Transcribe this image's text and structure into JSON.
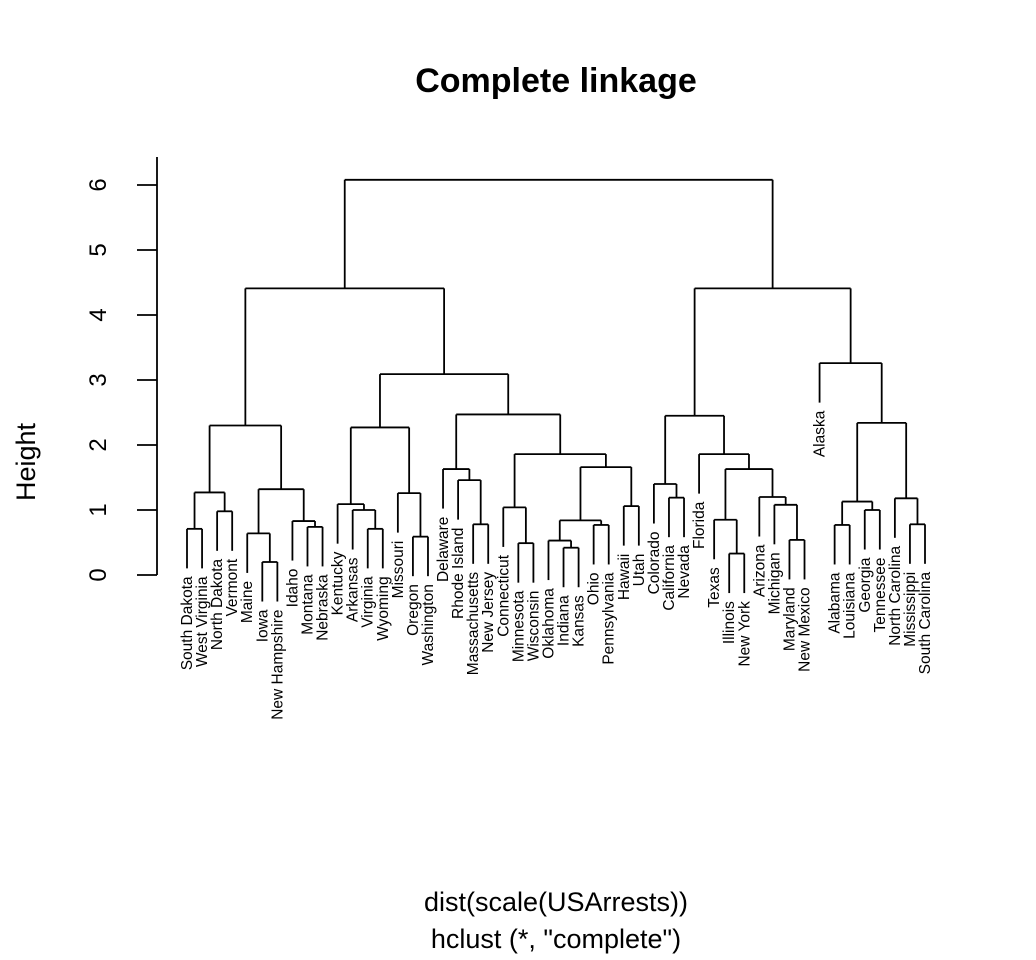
{
  "chart_data": {
    "type": "dendrogram",
    "title": "Complete linkage",
    "ylabel": "Height",
    "xlabel": "dist(scale(USArrests))",
    "sub": "hclust (*, \"complete\")",
    "ylim": [
      0,
      6
    ],
    "yticks": [
      0,
      1,
      2,
      3,
      4,
      5,
      6
    ],
    "grid": false,
    "labels": [
      "South Dakota",
      "West Virginia",
      "North Dakota",
      "Vermont",
      "Maine",
      "Iowa",
      "New Hampshire",
      "Idaho",
      "Montana",
      "Nebraska",
      "Kentucky",
      "Arkansas",
      "Virginia",
      "Wyoming",
      "Missouri",
      "Oregon",
      "Washington",
      "Delaware",
      "Rhode Island",
      "Massachusetts",
      "New Jersey",
      "Connecticut",
      "Minnesota",
      "Wisconsin",
      "Oklahoma",
      "Indiana",
      "Kansas",
      "Ohio",
      "Pennsylvania",
      "Hawaii",
      "Utah",
      "Colorado",
      "California",
      "Nevada",
      "Florida",
      "Texas",
      "Illinois",
      "New York",
      "Arizona",
      "Michigan",
      "Maryland",
      "New Mexico",
      "Alaska",
      "Alabama",
      "Louisiana",
      "Georgia",
      "Tennessee",
      "North Carolina",
      "Mississippi",
      "South Carolina"
    ],
    "tree": {
      "h": 6.08,
      "c": [
        {
          "h": 4.41,
          "c": [
            {
              "h": 2.3,
              "c": [
                {
                  "h": 1.27,
                  "c": [
                    {
                      "h": 0.71,
                      "c": [
                        0,
                        1
                      ]
                    },
                    {
                      "h": 0.98,
                      "c": [
                        2,
                        3
                      ]
                    }
                  ]
                },
                {
                  "h": 1.32,
                  "c": [
                    {
                      "h": 0.64,
                      "c": [
                        4,
                        {
                          "h": 0.2,
                          "c": [
                            5,
                            6
                          ]
                        }
                      ]
                    },
                    {
                      "h": 0.83,
                      "c": [
                        7,
                        {
                          "h": 0.74,
                          "c": [
                            8,
                            9
                          ]
                        }
                      ]
                    }
                  ]
                }
              ]
            },
            {
              "h": 3.09,
              "c": [
                {
                  "h": 2.27,
                  "c": [
                    {
                      "h": 1.09,
                      "c": [
                        10,
                        {
                          "h": 1.0,
                          "c": [
                            11,
                            {
                              "h": 0.71,
                              "c": [
                                12,
                                13
                              ]
                            }
                          ]
                        }
                      ]
                    },
                    {
                      "h": 1.26,
                      "c": [
                        14,
                        {
                          "h": 0.59,
                          "c": [
                            15,
                            16
                          ]
                        }
                      ]
                    }
                  ]
                },
                {
                  "h": 2.47,
                  "c": [
                    {
                      "h": 1.63,
                      "c": [
                        17,
                        {
                          "h": 1.46,
                          "c": [
                            18,
                            {
                              "h": 0.78,
                              "c": [
                                19,
                                20
                              ]
                            }
                          ]
                        }
                      ]
                    },
                    {
                      "h": 1.86,
                      "c": [
                        {
                          "h": 1.04,
                          "c": [
                            21,
                            {
                              "h": 0.49,
                              "c": [
                                22,
                                23
                              ]
                            }
                          ]
                        },
                        {
                          "h": 1.66,
                          "c": [
                            {
                              "h": 0.84,
                              "c": [
                                {
                                  "h": 0.53,
                                  "c": [
                                    24,
                                    {
                                      "h": 0.42,
                                      "c": [
                                        25,
                                        26
                                      ]
                                    }
                                  ]
                                },
                                {
                                  "h": 0.77,
                                  "c": [
                                    27,
                                    28
                                  ]
                                }
                              ]
                            },
                            {
                              "h": 1.06,
                              "c": [
                                29,
                                30
                              ]
                            }
                          ]
                        }
                      ]
                    }
                  ]
                }
              ]
            }
          ]
        },
        {
          "h": 4.41,
          "c": [
            {
              "h": 2.45,
              "c": [
                {
                  "h": 1.4,
                  "c": [
                    31,
                    {
                      "h": 1.19,
                      "c": [
                        32,
                        33
                      ]
                    }
                  ]
                },
                {
                  "h": 1.86,
                  "c": [
                    34,
                    {
                      "h": 1.63,
                      "c": [
                        {
                          "h": 0.85,
                          "c": [
                            35,
                            {
                              "h": 0.33,
                              "c": [
                                36,
                                37
                              ]
                            }
                          ]
                        },
                        {
                          "h": 1.2,
                          "c": [
                            38,
                            {
                              "h": 1.08,
                              "c": [
                                39,
                                {
                                  "h": 0.54,
                                  "c": [
                                    40,
                                    41
                                  ]
                                }
                              ]
                            }
                          ]
                        }
                      ]
                    }
                  ]
                }
              ]
            },
            {
              "h": 3.26,
              "c": [
                42,
                {
                  "h": 2.34,
                  "c": [
                    {
                      "h": 1.13,
                      "c": [
                        {
                          "h": 0.77,
                          "c": [
                            43,
                            44
                          ]
                        },
                        {
                          "h": 1.0,
                          "c": [
                            45,
                            46
                          ]
                        }
                      ]
                    },
                    {
                      "h": 1.18,
                      "c": [
                        47,
                        {
                          "h": 0.78,
                          "c": [
                            48,
                            49
                          ]
                        }
                      ]
                    }
                  ]
                }
              ]
            }
          ]
        }
      ]
    },
    "leaf_hang_heights": {
      "42": 2.65
    }
  }
}
